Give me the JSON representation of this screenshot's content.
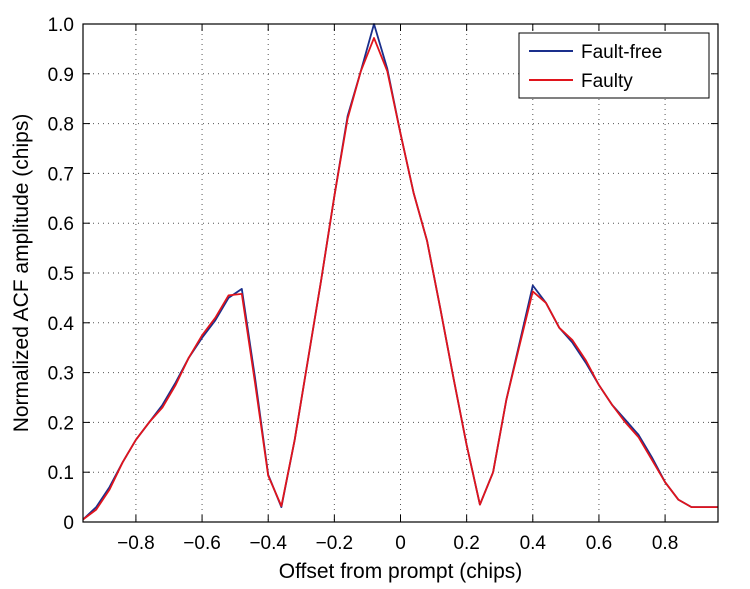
{
  "chart_data": {
    "type": "line",
    "title": "",
    "xlabel": "Offset from prompt (chips)",
    "ylabel": "Normalized ACF amplitude (chips)",
    "xlim": [
      -0.96,
      0.96
    ],
    "ylim": [
      0,
      1.0
    ],
    "xticks": [
      -0.8,
      -0.6,
      -0.4,
      -0.2,
      0,
      0.2,
      0.4,
      0.6,
      0.8
    ],
    "xtick_labels": [
      "−0.8",
      "−0.6",
      "−0.4",
      "−0.2",
      "0",
      "0.2",
      "0.4",
      "0.6",
      "0.8"
    ],
    "yticks": [
      0,
      0.1,
      0.2,
      0.3,
      0.4,
      0.5,
      0.6,
      0.7,
      0.8,
      0.9,
      1.0
    ],
    "ytick_labels": [
      "0",
      "0.1",
      "0.2",
      "0.3",
      "0.4",
      "0.5",
      "0.6",
      "0.7",
      "0.8",
      "0.9",
      "1.0"
    ],
    "grid": true,
    "legend_position": "top-right",
    "series": [
      {
        "name": "Fault-free",
        "color": "#1a2f8c",
        "x": [
          -0.96,
          -0.92,
          -0.88,
          -0.84,
          -0.8,
          -0.76,
          -0.72,
          -0.68,
          -0.64,
          -0.6,
          -0.56,
          -0.52,
          -0.48,
          -0.44,
          -0.4,
          -0.36,
          -0.32,
          -0.28,
          -0.24,
          -0.2,
          -0.16,
          -0.12,
          -0.08,
          -0.04,
          0.0,
          0.04,
          0.08,
          0.12,
          0.16,
          0.2,
          0.24,
          0.28,
          0.32,
          0.36,
          0.4,
          0.44,
          0.48,
          0.52,
          0.56,
          0.6,
          0.64,
          0.68,
          0.72,
          0.76,
          0.8,
          0.84,
          0.88,
          0.92,
          0.96
        ],
        "values": [
          0.005,
          0.03,
          0.07,
          0.12,
          0.165,
          0.2,
          0.235,
          0.28,
          0.33,
          0.37,
          0.405,
          0.45,
          0.468,
          0.29,
          0.095,
          0.03,
          0.165,
          0.325,
          0.485,
          0.655,
          0.815,
          0.905,
          1.0,
          0.91,
          0.78,
          0.66,
          0.565,
          0.43,
          0.29,
          0.155,
          0.035,
          0.1,
          0.245,
          0.36,
          0.475,
          0.44,
          0.39,
          0.36,
          0.32,
          0.275,
          0.235,
          0.205,
          0.175,
          0.13,
          0.08,
          0.045,
          0.03,
          0.03,
          0.03
        ]
      },
      {
        "name": "Faulty",
        "color": "#e0141c",
        "x": [
          -0.96,
          -0.92,
          -0.88,
          -0.84,
          -0.8,
          -0.76,
          -0.72,
          -0.68,
          -0.64,
          -0.6,
          -0.56,
          -0.52,
          -0.48,
          -0.44,
          -0.4,
          -0.36,
          -0.32,
          -0.28,
          -0.24,
          -0.2,
          -0.16,
          -0.12,
          -0.08,
          -0.04,
          0.0,
          0.04,
          0.08,
          0.12,
          0.16,
          0.2,
          0.24,
          0.28,
          0.32,
          0.36,
          0.4,
          0.44,
          0.48,
          0.52,
          0.56,
          0.6,
          0.64,
          0.68,
          0.72,
          0.76,
          0.8,
          0.84,
          0.88,
          0.92,
          0.96
        ],
        "values": [
          0.005,
          0.025,
          0.065,
          0.12,
          0.165,
          0.2,
          0.23,
          0.275,
          0.33,
          0.375,
          0.41,
          0.455,
          0.458,
          0.28,
          0.093,
          0.032,
          0.165,
          0.325,
          0.485,
          0.655,
          0.81,
          0.905,
          0.972,
          0.905,
          0.78,
          0.66,
          0.565,
          0.43,
          0.29,
          0.155,
          0.035,
          0.1,
          0.245,
          0.355,
          0.463,
          0.44,
          0.39,
          0.365,
          0.325,
          0.275,
          0.235,
          0.2,
          0.17,
          0.125,
          0.08,
          0.045,
          0.03,
          0.03,
          0.03
        ]
      }
    ]
  }
}
